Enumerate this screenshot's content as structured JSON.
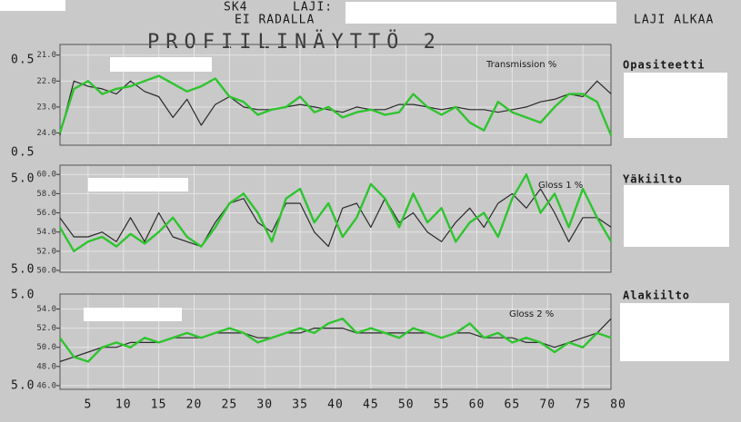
{
  "screen": {
    "sk": "SK4",
    "laji_label": "LAJI:",
    "status": "EI RADALLA",
    "laji_alkaa": "LAJI ALKAA",
    "title": "PROFIILINÄYTTÖ 2",
    "side_labels": [
      "Opasiteetti",
      "Yäkiilto",
      "Alakiilto"
    ],
    "scale_labels": [
      "0.5",
      "0.5",
      "5.0",
      "5.0",
      "5.0",
      "5.0"
    ]
  },
  "chart_data": [
    {
      "type": "line",
      "title": "Transmission  %",
      "x": [
        1,
        3,
        5,
        7,
        9,
        11,
        13,
        15,
        17,
        19,
        21,
        23,
        25,
        27,
        29,
        31,
        33,
        35,
        37,
        39,
        41,
        43,
        45,
        47,
        49,
        51,
        53,
        55,
        57,
        59,
        61,
        63,
        65,
        67,
        69,
        71,
        73,
        75,
        77,
        79
      ],
      "xlim": [
        0,
        80
      ],
      "ylim": [
        24.4,
        20.8
      ],
      "yticks": [
        {
          "value": 21,
          "label": "21.0"
        },
        {
          "value": 22,
          "label": "22.0"
        },
        {
          "value": 23,
          "label": "23.0"
        },
        {
          "value": 24,
          "label": "24.0"
        }
      ],
      "grid": true,
      "series": [
        {
          "color": "#2a2a2a",
          "values": [
            24.1,
            22.0,
            22.2,
            22.3,
            22.5,
            22.0,
            22.4,
            22.6,
            23.4,
            22.7,
            23.7,
            22.9,
            22.6,
            23.0,
            23.1,
            23.1,
            23.0,
            22.9,
            23.0,
            23.1,
            23.2,
            23.0,
            23.1,
            23.1,
            22.9,
            22.9,
            23.0,
            23.1,
            23.0,
            23.1,
            23.1,
            23.2,
            23.1,
            23.0,
            22.8,
            22.7,
            22.5,
            22.6,
            22.0,
            22.5
          ]
        },
        {
          "color": "#2fc42f",
          "values": [
            24.0,
            22.3,
            22.0,
            22.5,
            22.3,
            22.2,
            22.0,
            21.8,
            22.1,
            22.4,
            22.2,
            21.9,
            22.6,
            22.8,
            23.3,
            23.1,
            23.0,
            22.6,
            23.2,
            23.0,
            23.4,
            23.2,
            23.1,
            23.3,
            23.2,
            22.5,
            23.0,
            23.3,
            23.0,
            23.6,
            23.9,
            22.8,
            23.2,
            23.4,
            23.6,
            23.0,
            22.5,
            22.5,
            22.8,
            24.1
          ]
        }
      ]
    },
    {
      "type": "line",
      "title": "Gloss 1    %",
      "x": [
        1,
        3,
        5,
        7,
        9,
        11,
        13,
        15,
        17,
        19,
        21,
        23,
        25,
        27,
        29,
        31,
        33,
        35,
        37,
        39,
        41,
        43,
        45,
        47,
        49,
        51,
        53,
        55,
        57,
        59,
        61,
        63,
        65,
        67,
        69,
        71,
        73,
        75,
        77,
        79
      ],
      "xlim": [
        0,
        80
      ],
      "ylim": [
        50,
        60.4
      ],
      "yticks": [
        {
          "value": 60,
          "label": "60.0"
        },
        {
          "value": 58,
          "label": "58.0"
        },
        {
          "value": 56,
          "label": "56.0"
        },
        {
          "value": 54,
          "label": "54.0"
        },
        {
          "value": 52,
          "label": "52.0"
        },
        {
          "value": 50,
          "label": "50.0"
        }
      ],
      "grid": true,
      "series": [
        {
          "color": "#2a2a2a",
          "values": [
            55.5,
            53.5,
            53.5,
            54.0,
            53.0,
            55.5,
            53.0,
            56.0,
            53.5,
            53.0,
            52.5,
            55.0,
            57.0,
            57.5,
            55.0,
            54.0,
            57.0,
            57.0,
            54.0,
            52.5,
            56.5,
            57.0,
            54.5,
            57.5,
            55.0,
            56.0,
            54.0,
            53.0,
            55.0,
            56.5,
            54.5,
            57.0,
            58.0,
            56.5,
            58.5,
            56.0,
            53.0,
            55.5,
            55.5,
            54.5
          ]
        },
        {
          "color": "#2fc42f",
          "values": [
            54.5,
            52.0,
            53.0,
            53.5,
            52.5,
            53.8,
            52.8,
            54.0,
            55.5,
            53.5,
            52.5,
            54.5,
            57.0,
            58.0,
            56.0,
            53.0,
            57.5,
            58.5,
            55.0,
            57.0,
            53.5,
            55.5,
            59.0,
            57.5,
            54.5,
            58.0,
            55.0,
            56.5,
            53.0,
            55.0,
            56.0,
            53.5,
            57.5,
            60.0,
            56.0,
            58.0,
            54.5,
            58.5,
            55.5,
            53.0
          ]
        }
      ]
    },
    {
      "type": "line",
      "title": "Gloss 2    %",
      "x": [
        1,
        3,
        5,
        7,
        9,
        11,
        13,
        15,
        17,
        19,
        21,
        23,
        25,
        27,
        29,
        31,
        33,
        35,
        37,
        39,
        41,
        43,
        45,
        47,
        49,
        51,
        53,
        55,
        57,
        59,
        61,
        63,
        65,
        67,
        69,
        71,
        73,
        75,
        77,
        79
      ],
      "xlim": [
        0,
        80
      ],
      "ylim": [
        45.8,
        55
      ],
      "xticks": [
        5,
        10,
        15,
        20,
        25,
        30,
        35,
        40,
        45,
        50,
        55,
        60,
        65,
        70,
        75,
        80
      ],
      "yticks": [
        {
          "value": 54,
          "label": "54.0"
        },
        {
          "value": 52,
          "label": "52.0"
        },
        {
          "value": 50,
          "label": "50.0"
        },
        {
          "value": 48,
          "label": "48.0"
        },
        {
          "value": 46,
          "label": "46.0"
        }
      ],
      "grid": true,
      "series": [
        {
          "color": "#2a2a2a",
          "values": [
            48.5,
            49.0,
            49.5,
            50.0,
            50.0,
            50.5,
            50.5,
            50.5,
            51.0,
            51.0,
            51.0,
            51.5,
            51.5,
            51.5,
            51.0,
            51.0,
            51.5,
            51.5,
            52.0,
            52.0,
            52.0,
            51.5,
            51.5,
            51.5,
            51.5,
            51.5,
            51.5,
            51.0,
            51.5,
            51.5,
            51.0,
            51.0,
            51.0,
            50.5,
            50.5,
            50.0,
            50.5,
            51.0,
            51.5,
            53.0
          ]
        },
        {
          "color": "#2fc42f",
          "values": [
            51.0,
            49.0,
            48.5,
            50.0,
            50.5,
            50.0,
            51.0,
            50.5,
            51.0,
            51.5,
            51.0,
            51.5,
            52.0,
            51.5,
            50.5,
            51.0,
            51.5,
            52.0,
            51.5,
            52.5,
            53.0,
            51.5,
            52.0,
            51.5,
            51.0,
            52.0,
            51.5,
            51.0,
            51.5,
            52.5,
            51.0,
            51.5,
            50.5,
            51.0,
            50.5,
            49.5,
            50.5,
            50.0,
            51.5,
            51.0
          ]
        }
      ]
    }
  ]
}
